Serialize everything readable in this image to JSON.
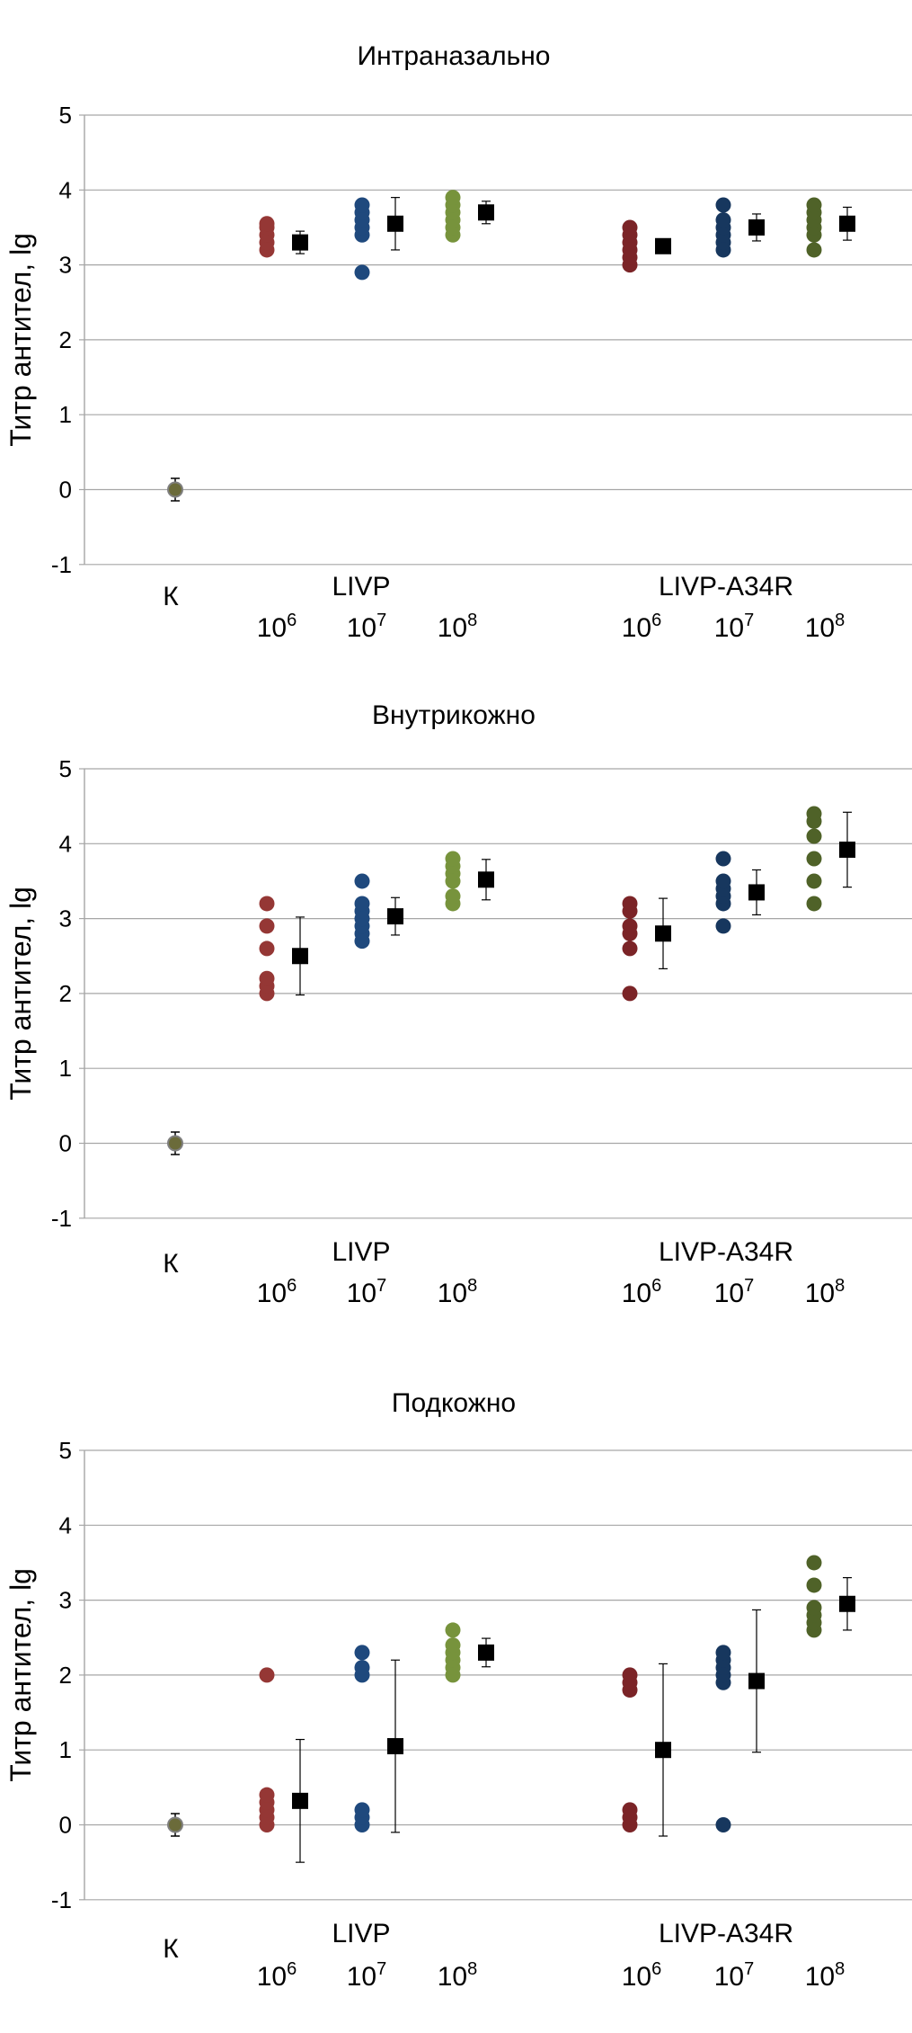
{
  "chart_data": [
    {
      "type": "scatter",
      "title": "Интраназально",
      "ylabel": "Титр антител, lg",
      "ylim": [
        -1,
        5
      ],
      "yticks": [
        "-1",
        "0",
        "1",
        "2",
        "3",
        "4",
        "5"
      ],
      "control": {
        "label": "К",
        "mean": 0,
        "err": 0.15
      },
      "groups": [
        "LIVP",
        "LIVP-A34R"
      ],
      "doses": [
        "6",
        "7",
        "8"
      ],
      "dose_base": "10",
      "series": [
        {
          "group": "LIVP",
          "dose": "6",
          "points": [
            3.2,
            3.3,
            3.4,
            3.5,
            3.55
          ],
          "mean": 3.3,
          "err": 0.15,
          "color": "#953735"
        },
        {
          "group": "LIVP",
          "dose": "7",
          "points": [
            2.9,
            3.4,
            3.5,
            3.6,
            3.7,
            3.8
          ],
          "mean": 3.55,
          "err": 0.35,
          "color": "#1F497D"
        },
        {
          "group": "LIVP",
          "dose": "8",
          "points": [
            3.4,
            3.5,
            3.6,
            3.7,
            3.8,
            3.9
          ],
          "mean": 3.7,
          "err": 0.15,
          "color": "#77933C"
        },
        {
          "group": "LIVP-A34R",
          "dose": "6",
          "points": [
            3.0,
            3.1,
            3.2,
            3.3,
            3.4,
            3.5
          ],
          "mean": 3.25,
          "err": 0.08,
          "color": "#7B2427"
        },
        {
          "group": "LIVP-A34R",
          "dose": "7",
          "points": [
            3.2,
            3.3,
            3.4,
            3.5,
            3.6,
            3.8
          ],
          "mean": 3.5,
          "err": 0.18,
          "color": "#17375E"
        },
        {
          "group": "LIVP-A34R",
          "dose": "8",
          "points": [
            3.2,
            3.4,
            3.5,
            3.6,
            3.7,
            3.8
          ],
          "mean": 3.55,
          "err": 0.22,
          "color": "#4F6228"
        }
      ]
    },
    {
      "type": "scatter",
      "title": "Внутрикожно",
      "ylabel": "Титр антител, lg",
      "ylim": [
        -1,
        5
      ],
      "yticks": [
        "-1",
        "0",
        "1",
        "2",
        "3",
        "4",
        "5"
      ],
      "control": {
        "label": "К",
        "mean": 0,
        "err": 0.15
      },
      "groups": [
        "LIVP",
        "LIVP-A34R"
      ],
      "doses": [
        "6",
        "7",
        "8"
      ],
      "dose_base": "10",
      "series": [
        {
          "group": "LIVP",
          "dose": "6",
          "points": [
            2.0,
            2.1,
            2.2,
            2.6,
            2.9,
            3.2
          ],
          "mean": 2.5,
          "err": 0.52,
          "color": "#953735"
        },
        {
          "group": "LIVP",
          "dose": "7",
          "points": [
            2.7,
            2.8,
            2.9,
            3.0,
            3.1,
            3.2,
            3.5
          ],
          "mean": 3.03,
          "err": 0.25,
          "color": "#1F497D"
        },
        {
          "group": "LIVP",
          "dose": "8",
          "points": [
            3.2,
            3.3,
            3.5,
            3.6,
            3.7,
            3.8
          ],
          "mean": 3.52,
          "err": 0.27,
          "color": "#77933C"
        },
        {
          "group": "LIVP-A34R",
          "dose": "6",
          "points": [
            2.0,
            2.6,
            2.8,
            2.9,
            3.1,
            3.2
          ],
          "mean": 2.8,
          "err": 0.47,
          "color": "#7B2427"
        },
        {
          "group": "LIVP-A34R",
          "dose": "7",
          "points": [
            2.9,
            3.2,
            3.3,
            3.4,
            3.5,
            3.8
          ],
          "mean": 3.35,
          "err": 0.3,
          "color": "#17375E"
        },
        {
          "group": "LIVP-A34R",
          "dose": "8",
          "points": [
            3.2,
            3.5,
            3.8,
            4.1,
            4.3,
            4.4
          ],
          "mean": 3.92,
          "err": 0.5,
          "color": "#4F6228"
        }
      ]
    },
    {
      "type": "scatter",
      "title": "Подкожно",
      "ylabel": "Титр антител, lg",
      "ylim": [
        -1,
        5
      ],
      "yticks": [
        "-1",
        "0",
        "1",
        "2",
        "3",
        "4",
        "5"
      ],
      "control": {
        "label": "К",
        "mean": 0,
        "err": 0.15
      },
      "groups": [
        "LIVP",
        "LIVP-A34R"
      ],
      "doses": [
        "6",
        "7",
        "8"
      ],
      "dose_base": "10",
      "series": [
        {
          "group": "LIVP",
          "dose": "6",
          "points": [
            0.0,
            0.1,
            0.2,
            0.3,
            0.4,
            2.0
          ],
          "mean": 0.32,
          "err": 0.82,
          "color": "#953735"
        },
        {
          "group": "LIVP",
          "dose": "7",
          "points": [
            0.0,
            0.1,
            0.2,
            2.0,
            2.1,
            2.3
          ],
          "mean": 1.05,
          "err": 1.15,
          "color": "#1F497D"
        },
        {
          "group": "LIVP",
          "dose": "8",
          "points": [
            2.0,
            2.1,
            2.2,
            2.3,
            2.4,
            2.6
          ],
          "mean": 2.3,
          "err": 0.19,
          "color": "#77933C"
        },
        {
          "group": "LIVP-A34R",
          "dose": "6",
          "points": [
            0.0,
            0.1,
            0.2,
            1.8,
            1.9,
            2.0
          ],
          "mean": 1.0,
          "err": 1.15,
          "color": "#7B2427"
        },
        {
          "group": "LIVP-A34R",
          "dose": "7",
          "points": [
            0.0,
            1.9,
            2.0,
            2.1,
            2.2,
            2.3
          ],
          "mean": 1.92,
          "err": 0.95,
          "color": "#17375E"
        },
        {
          "group": "LIVP-A34R",
          "dose": "8",
          "points": [
            2.6,
            2.7,
            2.8,
            2.9,
            3.2,
            3.5
          ],
          "mean": 2.95,
          "err": 0.35,
          "color": "#4F6228"
        }
      ]
    }
  ],
  "colors": {
    "grid": "#A6A6A6",
    "mean_marker": "#000000",
    "control_fill": "#6B6B3A",
    "control_outline": "#7F7F7F"
  }
}
